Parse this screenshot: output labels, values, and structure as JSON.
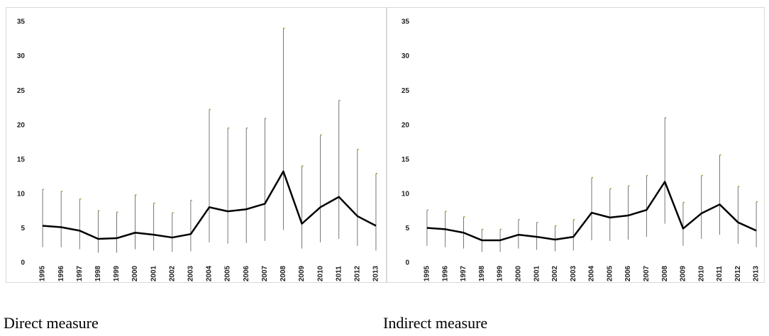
{
  "chart_data": [
    {
      "type": "line",
      "caption": "Direct measure",
      "categories": [
        "1995",
        "1996",
        "1997",
        "1998",
        "1999",
        "2000",
        "2001",
        "2002",
        "2003",
        "2004",
        "2005",
        "2006",
        "2007",
        "2008",
        "2009",
        "2010",
        "2011",
        "2012",
        "2013"
      ],
      "series": [
        {
          "color": "#000000",
          "error_color": "#a89a3a",
          "values": [
            5.4,
            5.2,
            4.7,
            3.5,
            3.6,
            4.4,
            4.1,
            3.7,
            4.2,
            8.1,
            7.5,
            7.8,
            8.6,
            13.3,
            5.7,
            8.1,
            9.6,
            6.8,
            5.4
          ],
          "low": [
            2.3,
            2.3,
            2.0,
            1.5,
            1.5,
            2.0,
            1.8,
            1.6,
            1.7,
            3.0,
            2.8,
            2.9,
            3.2,
            4.8,
            2.1,
            3.0,
            3.5,
            2.5,
            1.8
          ],
          "high": [
            10.7,
            10.4,
            9.3,
            7.6,
            7.4,
            9.9,
            8.7,
            7.3,
            9.1,
            22.3,
            19.6,
            19.6,
            21.0,
            34.1,
            14.1,
            18.6,
            23.6,
            16.5,
            13.0
          ]
        }
      ],
      "ylim": [
        0,
        35
      ],
      "yticks": [
        0,
        5,
        10,
        15,
        20,
        25,
        30,
        35
      ]
    },
    {
      "type": "line",
      "caption": "Indirect measure",
      "categories": [
        "1995",
        "1996",
        "1997",
        "1998",
        "1999",
        "2000",
        "2001",
        "2002",
        "2003",
        "2004",
        "2005",
        "2006",
        "2007",
        "2008",
        "2009",
        "2010",
        "2011",
        "2012",
        "2013"
      ],
      "series": [
        {
          "color": "#000000",
          "error_color": "#a89a3a",
          "values": [
            5.1,
            4.9,
            4.4,
            3.3,
            3.3,
            4.1,
            3.8,
            3.4,
            3.8,
            7.3,
            6.6,
            6.9,
            7.7,
            11.8,
            5.0,
            7.2,
            8.5,
            5.9,
            4.7
          ],
          "low": [
            2.5,
            2.3,
            2.1,
            1.6,
            1.6,
            2.1,
            1.9,
            1.7,
            1.8,
            3.3,
            3.2,
            3.4,
            3.8,
            5.7,
            2.5,
            3.5,
            4.1,
            2.8,
            2.3
          ],
          "high": [
            7.7,
            7.5,
            6.7,
            4.9,
            4.9,
            6.3,
            5.9,
            5.4,
            6.3,
            12.4,
            10.8,
            11.2,
            12.7,
            21.1,
            8.8,
            12.7,
            15.7,
            11.1,
            8.9
          ]
        }
      ],
      "ylim": [
        0,
        35
      ],
      "yticks": [
        0,
        5,
        10,
        15,
        20,
        25,
        30,
        35
      ]
    }
  ]
}
